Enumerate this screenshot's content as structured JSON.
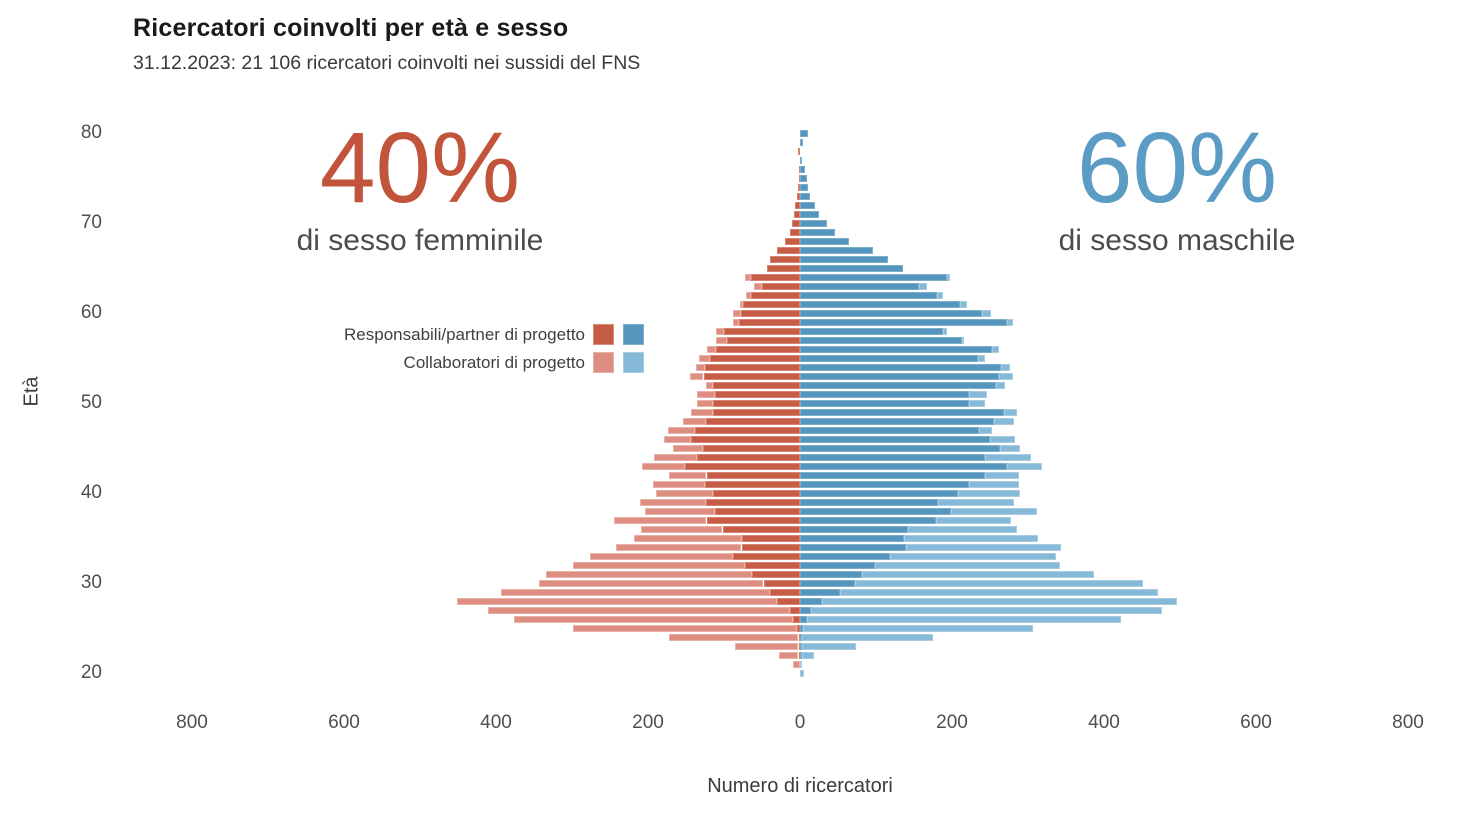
{
  "header": {
    "title": "Ricercatori coinvolti per età e sesso",
    "subtitle": "31.12.2023: 21 106 ricercatori coinvolti nei sussidi del FNS"
  },
  "annotations": {
    "female": {
      "percent": "40%",
      "label": "di sesso femminile",
      "color": "#c3543c"
    },
    "male": {
      "percent": "60%",
      "label": "di sesso maschile",
      "color": "#5b9cc5"
    }
  },
  "legend": {
    "items": [
      {
        "label": "Responsabili/partner di progetto",
        "female_color": "#c65c46",
        "male_color": "#5496bd"
      },
      {
        "label": "Collaboratori di progetto",
        "female_color": "#dd8e81",
        "male_color": "#86b9d8"
      }
    ]
  },
  "chart_data": {
    "type": "bar",
    "subtype": "population-pyramid-stacked",
    "title": "Ricercatori coinvolti per età e sesso",
    "xlabel": "Numero di ricercatori",
    "ylabel": "Età",
    "grid": false,
    "legend_position": "left-middle",
    "x_ticks": [
      {
        "value": -800,
        "label": "800"
      },
      {
        "value": -600,
        "label": "600"
      },
      {
        "value": -400,
        "label": "400"
      },
      {
        "value": -200,
        "label": "200"
      },
      {
        "value": 0,
        "label": "0"
      },
      {
        "value": 200,
        "label": "200"
      },
      {
        "value": 400,
        "label": "400"
      },
      {
        "value": 600,
        "label": "600"
      },
      {
        "value": 800,
        "label": "800"
      }
    ],
    "y_ticks": [
      20,
      30,
      40,
      50,
      60,
      70,
      80
    ],
    "ylim": [
      19,
      81
    ],
    "xlim_each_side": 900,
    "series": [
      {
        "key": "f_resp",
        "name": "Responsabili/partner di progetto (femminile)",
        "color": "#c65c46",
        "side": "left"
      },
      {
        "key": "f_coll",
        "name": "Collaboratori di progetto (femminile)",
        "color": "#dd8e81",
        "side": "left"
      },
      {
        "key": "m_resp",
        "name": "Responsabili/partner di progetto (maschile)",
        "color": "#5496bd",
        "side": "right"
      },
      {
        "key": "m_coll",
        "name": "Collaboratori di progetto (maschile)",
        "color": "#86b9d8",
        "side": "right"
      }
    ],
    "rows": [
      {
        "age": 20,
        "f_resp": 0,
        "f_coll": 0,
        "m_resp": 0,
        "m_coll": 5
      },
      {
        "age": 21,
        "f_resp": 0,
        "f_coll": 9,
        "m_resp": 0,
        "m_coll": 2
      },
      {
        "age": 22,
        "f_resp": 2,
        "f_coll": 26,
        "m_resp": 2,
        "m_coll": 17
      },
      {
        "age": 23,
        "f_resp": 2,
        "f_coll": 84,
        "m_resp": 2,
        "m_coll": 71
      },
      {
        "age": 24,
        "f_resp": 2,
        "f_coll": 170,
        "m_resp": 3,
        "m_coll": 172
      },
      {
        "age": 25,
        "f_resp": 4,
        "f_coll": 295,
        "m_resp": 4,
        "m_coll": 303
      },
      {
        "age": 26,
        "f_resp": 9,
        "f_coll": 367,
        "m_resp": 9,
        "m_coll": 413
      },
      {
        "age": 27,
        "f_resp": 13,
        "f_coll": 397,
        "m_resp": 14,
        "m_coll": 462
      },
      {
        "age": 28,
        "f_resp": 30,
        "f_coll": 421,
        "m_resp": 29,
        "m_coll": 467
      },
      {
        "age": 29,
        "f_resp": 40,
        "f_coll": 354,
        "m_resp": 52,
        "m_coll": 419
      },
      {
        "age": 30,
        "f_resp": 48,
        "f_coll": 295,
        "m_resp": 72,
        "m_coll": 379
      },
      {
        "age": 31,
        "f_resp": 63,
        "f_coll": 271,
        "m_resp": 82,
        "m_coll": 305
      },
      {
        "age": 32,
        "f_resp": 73,
        "f_coll": 226,
        "m_resp": 98,
        "m_coll": 244
      },
      {
        "age": 33,
        "f_resp": 88,
        "f_coll": 189,
        "m_resp": 118,
        "m_coll": 219
      },
      {
        "age": 34,
        "f_resp": 77,
        "f_coll": 165,
        "m_resp": 140,
        "m_coll": 204
      },
      {
        "age": 35,
        "f_resp": 76,
        "f_coll": 143,
        "m_resp": 137,
        "m_coll": 176
      },
      {
        "age": 36,
        "f_resp": 102,
        "f_coll": 107,
        "m_resp": 142,
        "m_coll": 143
      },
      {
        "age": 37,
        "f_resp": 123,
        "f_coll": 122,
        "m_resp": 179,
        "m_coll": 98
      },
      {
        "age": 38,
        "f_resp": 112,
        "f_coll": 92,
        "m_resp": 199,
        "m_coll": 113
      },
      {
        "age": 39,
        "f_resp": 124,
        "f_coll": 86,
        "m_resp": 182,
        "m_coll": 100
      },
      {
        "age": 40,
        "f_resp": 114,
        "f_coll": 76,
        "m_resp": 208,
        "m_coll": 82
      },
      {
        "age": 41,
        "f_resp": 125,
        "f_coll": 69,
        "m_resp": 222,
        "m_coll": 66
      },
      {
        "age": 42,
        "f_resp": 123,
        "f_coll": 49,
        "m_resp": 243,
        "m_coll": 45
      },
      {
        "age": 43,
        "f_resp": 151,
        "f_coll": 57,
        "m_resp": 272,
        "m_coll": 47
      },
      {
        "age": 44,
        "f_resp": 136,
        "f_coll": 56,
        "m_resp": 243,
        "m_coll": 61
      },
      {
        "age": 45,
        "f_resp": 128,
        "f_coll": 39,
        "m_resp": 263,
        "m_coll": 27
      },
      {
        "age": 46,
        "f_resp": 144,
        "f_coll": 35,
        "m_resp": 250,
        "m_coll": 33
      },
      {
        "age": 47,
        "f_resp": 138,
        "f_coll": 36,
        "m_resp": 235,
        "m_coll": 18
      },
      {
        "age": 48,
        "f_resp": 124,
        "f_coll": 30,
        "m_resp": 255,
        "m_coll": 27
      },
      {
        "age": 49,
        "f_resp": 114,
        "f_coll": 29,
        "m_resp": 269,
        "m_coll": 16
      },
      {
        "age": 50,
        "f_resp": 114,
        "f_coll": 21,
        "m_resp": 222,
        "m_coll": 21
      },
      {
        "age": 51,
        "f_resp": 112,
        "f_coll": 24,
        "m_resp": 222,
        "m_coll": 24
      },
      {
        "age": 52,
        "f_resp": 114,
        "f_coll": 10,
        "m_resp": 258,
        "m_coll": 12
      },
      {
        "age": 53,
        "f_resp": 127,
        "f_coll": 18,
        "m_resp": 262,
        "m_coll": 18
      },
      {
        "age": 54,
        "f_resp": 125,
        "f_coll": 12,
        "m_resp": 265,
        "m_coll": 12
      },
      {
        "age": 55,
        "f_resp": 118,
        "f_coll": 15,
        "m_resp": 234,
        "m_coll": 10
      },
      {
        "age": 56,
        "f_resp": 110,
        "f_coll": 12,
        "m_resp": 252,
        "m_coll": 10
      },
      {
        "age": 57,
        "f_resp": 96,
        "f_coll": 15,
        "m_resp": 213,
        "m_coll": 3
      },
      {
        "age": 58,
        "f_resp": 100,
        "f_coll": 10,
        "m_resp": 188,
        "m_coll": 5
      },
      {
        "age": 59,
        "f_resp": 80,
        "f_coll": 8,
        "m_resp": 272,
        "m_coll": 9
      },
      {
        "age": 60,
        "f_resp": 78,
        "f_coll": 10,
        "m_resp": 240,
        "m_coll": 11
      },
      {
        "age": 61,
        "f_resp": 75,
        "f_coll": 4,
        "m_resp": 211,
        "m_coll": 9
      },
      {
        "age": 62,
        "f_resp": 64,
        "f_coll": 7,
        "m_resp": 180,
        "m_coll": 8
      },
      {
        "age": 63,
        "f_resp": 50,
        "f_coll": 10,
        "m_resp": 156,
        "m_coll": 11
      },
      {
        "age": 64,
        "f_resp": 64,
        "f_coll": 8,
        "m_resp": 193,
        "m_coll": 5
      },
      {
        "age": 65,
        "f_resp": 43,
        "f_coll": 0,
        "m_resp": 135,
        "m_coll": 0
      },
      {
        "age": 66,
        "f_resp": 39,
        "f_coll": 0,
        "m_resp": 116,
        "m_coll": 0
      },
      {
        "age": 67,
        "f_resp": 30,
        "f_coll": 0,
        "m_resp": 96,
        "m_coll": 0
      },
      {
        "age": 68,
        "f_resp": 20,
        "f_coll": 0,
        "m_resp": 64,
        "m_coll": 0
      },
      {
        "age": 69,
        "f_resp": 13,
        "f_coll": 0,
        "m_resp": 46,
        "m_coll": 0
      },
      {
        "age": 70,
        "f_resp": 10,
        "f_coll": 0,
        "m_resp": 35,
        "m_coll": 0
      },
      {
        "age": 71,
        "f_resp": 8,
        "f_coll": 0,
        "m_resp": 25,
        "m_coll": 0
      },
      {
        "age": 72,
        "f_resp": 6,
        "f_coll": 0,
        "m_resp": 20,
        "m_coll": 0
      },
      {
        "age": 73,
        "f_resp": 4,
        "f_coll": 0,
        "m_resp": 13,
        "m_coll": 0
      },
      {
        "age": 74,
        "f_resp": 3,
        "f_coll": 0,
        "m_resp": 10,
        "m_coll": 0
      },
      {
        "age": 75,
        "f_resp": 2,
        "f_coll": 0,
        "m_resp": 9,
        "m_coll": 0
      },
      {
        "age": 76,
        "f_resp": 1,
        "f_coll": 0,
        "m_resp": 7,
        "m_coll": 0
      },
      {
        "age": 77,
        "f_resp": 0,
        "f_coll": 0,
        "m_resp": 3,
        "m_coll": 0
      },
      {
        "age": 78,
        "f_resp": 3,
        "f_coll": 0,
        "m_resp": 0,
        "m_coll": 0
      },
      {
        "age": 79,
        "f_resp": 0,
        "f_coll": 0,
        "m_resp": 4,
        "m_coll": 0
      },
      {
        "age": 80,
        "f_resp": 0,
        "f_coll": 0,
        "m_resp": 10,
        "m_coll": 0
      }
    ]
  }
}
